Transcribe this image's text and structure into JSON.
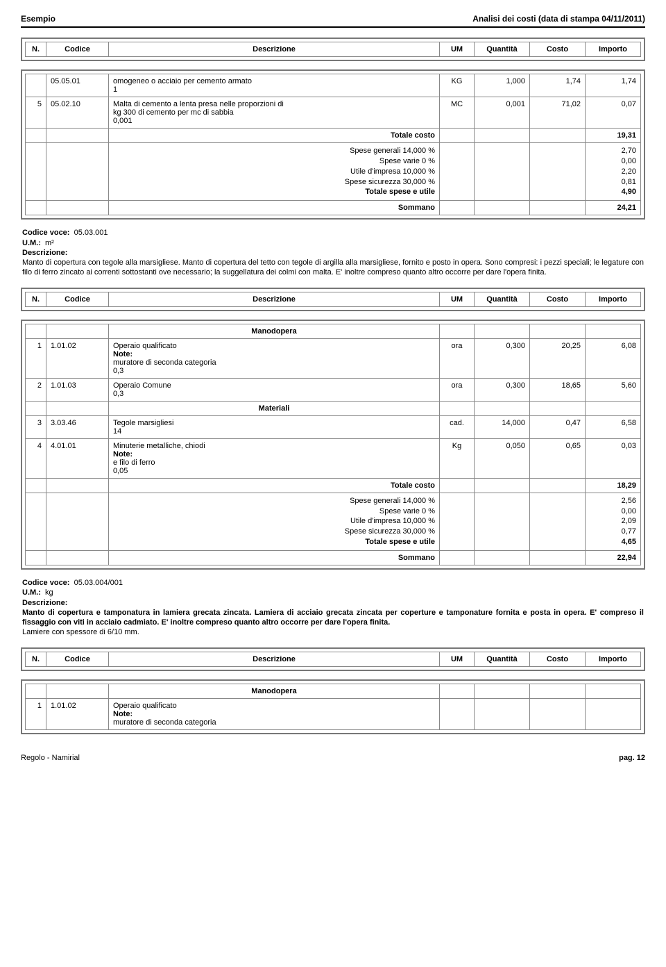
{
  "header": {
    "left": "Esempio",
    "right": "Analisi dei costi (data di stampa 04/11/2011)"
  },
  "columns": {
    "n": "N.",
    "code": "Codice",
    "desc": "Descrizione",
    "um": "UM",
    "qty": "Quantità",
    "cost": "Costo",
    "imp": "Importo"
  },
  "section_labels": {
    "manodopera": "Manodopera",
    "materiali": "Materiali",
    "note": "Note:"
  },
  "block1": {
    "r1": {
      "code": "05.05.01",
      "desc_l1": "omogeneo o acciaio per cemento armato",
      "desc_l2": "1",
      "um": "KG",
      "qty": "1,000",
      "cost": "1,74",
      "imp": "1,74"
    },
    "r2": {
      "n": "5",
      "code": "05.02.10",
      "desc_l1": "Malta di cemento a lenta presa nelle proporzioni di",
      "desc_l2": "kg 300 di cemento per mc di sabbia",
      "desc_l3": "0,001",
      "um": "MC",
      "qty": "0,001",
      "cost": "71,02",
      "imp": "0,07"
    },
    "totals": {
      "totale_costo_label": "Totale costo",
      "totale_costo_val": "19,31",
      "sg_label": "Spese generali 14,000 %",
      "sg_val": "2,70",
      "sv_label": "Spese varie 0 %",
      "sv_val": "0,00",
      "ui_label": "Utile d'impresa 10,000 %",
      "ui_val": "2,20",
      "ss_label": "Spese sicurezza 30,000 %",
      "ss_val": "0,81",
      "tsu_label": "Totale spese e utile",
      "tsu_val": "4,90",
      "somma_label": "Sommano",
      "somma_val": "24,21"
    }
  },
  "voce1": {
    "code_label": "Codice voce:",
    "code_val": "05.03.001",
    "um_label": "U.M.:",
    "um_val": "m²",
    "desc_label": "Descrizione:",
    "desc_text": "Manto di copertura con tegole alla marsigliese. Manto di copertura del tetto con tegole di argilla alla marsigliese, fornito e posto in opera. Sono compresi: i pezzi speciali; le legature con filo di ferro zincato ai correnti sottostanti ove necessario; la suggellatura dei colmi con malta. E' inoltre compreso quanto altro occorre per dare l'opera finita."
  },
  "block2": {
    "r1": {
      "n": "1",
      "code": "1.01.02",
      "desc_l1": "Operaio qualificato",
      "desc_l2": "muratore di seconda categoria",
      "desc_l3": "0,3",
      "um": "ora",
      "qty": "0,300",
      "cost": "20,25",
      "imp": "6,08"
    },
    "r2": {
      "n": "2",
      "code": "1.01.03",
      "desc_l1": "Operaio Comune",
      "desc_l2": "0,3",
      "um": "ora",
      "qty": "0,300",
      "cost": "18,65",
      "imp": "5,60"
    },
    "r3": {
      "n": "3",
      "code": "3.03.46",
      "desc_l1": "Tegole marsigliesi",
      "desc_l2": "14",
      "um": "cad.",
      "qty": "14,000",
      "cost": "0,47",
      "imp": "6,58"
    },
    "r4": {
      "n": "4",
      "code": "4.01.01",
      "desc_l1": "Minuterie metalliche, chiodi",
      "desc_l2": "e filo di ferro",
      "desc_l3": "0,05",
      "um": "Kg",
      "qty": "0,050",
      "cost": "0,65",
      "imp": "0,03"
    },
    "totals": {
      "totale_costo_label": "Totale costo",
      "totale_costo_val": "18,29",
      "sg_label": "Spese generali 14,000 %",
      "sg_val": "2,56",
      "sv_label": "Spese varie 0 %",
      "sv_val": "0,00",
      "ui_label": "Utile d'impresa 10,000 %",
      "ui_val": "2,09",
      "ss_label": "Spese sicurezza 30,000 %",
      "ss_val": "0,77",
      "tsu_label": "Totale spese e utile",
      "tsu_val": "4,65",
      "somma_label": "Sommano",
      "somma_val": "22,94"
    }
  },
  "voce2": {
    "code_label": "Codice voce:",
    "code_val": "05.03.004/001",
    "um_label": "U.M.:",
    "um_val": "kg",
    "desc_label": "Descrizione:",
    "desc_bold": "Manto di copertura e tamponatura in lamiera grecata zincata. Lamiera di acciaio grecata zincata per coperture e tamponature fornita e posta in opera. E' compreso il fissaggio con viti in acciaio cadmiato. E' inoltre compreso quanto altro occorre per dare l'opera finita.",
    "desc_plain": "Lamiere con spessore di 6/10 mm."
  },
  "block3": {
    "r1": {
      "n": "1",
      "code": "1.01.02",
      "desc_l1": "Operaio qualificato",
      "desc_l2": "muratore di seconda categoria"
    }
  },
  "footer": {
    "left": "Regolo - Namirial",
    "right": "pag. 12"
  }
}
